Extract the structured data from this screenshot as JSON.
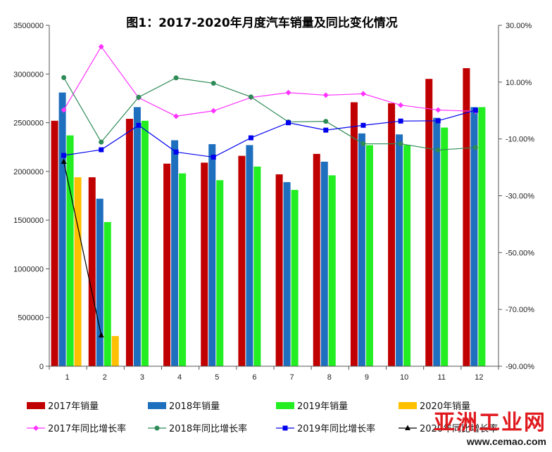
{
  "chart_data": {
    "type": "bar",
    "title": "图1：2017-2020年月度汽车销量及同比变化情况",
    "categories": [
      "1",
      "2",
      "3",
      "4",
      "5",
      "6",
      "7",
      "8",
      "9",
      "10",
      "11",
      "12"
    ],
    "y_left": {
      "ylim": [
        0,
        3500000
      ],
      "ticks": [
        0,
        500000,
        1000000,
        1500000,
        2000000,
        2500000,
        3000000,
        3500000
      ],
      "tick_labels": [
        "0",
        "500000",
        "1000000",
        "1500000",
        "2000000",
        "2500000",
        "3000000",
        "3500000"
      ]
    },
    "y_right": {
      "ylim": [
        -90,
        30
      ],
      "ticks": [
        -90,
        -70,
        -50,
        -30,
        -10,
        10,
        30
      ],
      "tick_labels": [
        "-90.00%",
        "-70.00%",
        "-50.00%",
        "-30.00%",
        "-10.00%",
        "10.00%",
        "30.00%"
      ]
    },
    "bar_series": [
      {
        "name": "2017年销量",
        "color": "#c00000",
        "values": [
          2520000,
          1940000,
          2540000,
          2080000,
          2090000,
          2160000,
          1970000,
          2180000,
          2710000,
          2700000,
          2950000,
          3060000
        ]
      },
      {
        "name": "2018年销量",
        "color": "#1f6fbf",
        "values": [
          2810000,
          1720000,
          2660000,
          2320000,
          2280000,
          2270000,
          1890000,
          2100000,
          2390000,
          2380000,
          2550000,
          2660000
        ]
      },
      {
        "name": "2019年销量",
        "color": "#22ee22",
        "values": [
          2370000,
          1480000,
          2520000,
          1980000,
          1910000,
          2050000,
          1810000,
          1960000,
          2270000,
          2270000,
          2450000,
          2660000
        ]
      },
      {
        "name": "2020年销量",
        "color": "#ffc000",
        "values": [
          1940000,
          310000,
          null,
          null,
          null,
          null,
          null,
          null,
          null,
          null,
          null,
          null
        ]
      }
    ],
    "line_series": [
      {
        "name": "2017年同比增长率",
        "color": "#ff33ff",
        "marker": "diamond",
        "values": [
          0.2,
          22.5,
          4.5,
          -2.0,
          -0.1,
          4.6,
          6.3,
          5.4,
          5.9,
          1.9,
          0.2,
          -0.3
        ]
      },
      {
        "name": "2018年同比增长率",
        "color": "#2e8b57",
        "marker": "circle",
        "values": [
          11.6,
          -11.1,
          4.7,
          11.5,
          9.6,
          4.8,
          -4.0,
          -3.8,
          -11.7,
          -11.7,
          -13.9,
          -13.0
        ]
      },
      {
        "name": "2019年同比增长率",
        "color": "#0000ee",
        "marker": "square",
        "values": [
          -15.8,
          -13.8,
          -5.2,
          -14.6,
          -16.4,
          -9.6,
          -4.3,
          -6.9,
          -5.2,
          -3.7,
          -3.6,
          0.1
        ]
      },
      {
        "name": "2020年同比增长率",
        "color": "#000000",
        "marker": "triangle",
        "values": [
          -18.0,
          -79.1,
          null,
          null,
          null,
          null,
          null,
          null,
          null,
          null,
          null,
          null
        ]
      }
    ],
    "legend_position": "bottom",
    "grid": false
  },
  "watermark": {
    "brand": "亚洲工业网",
    "url": "www.cemao.com"
  }
}
